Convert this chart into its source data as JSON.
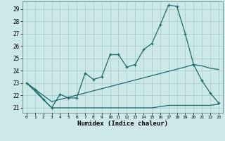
{
  "xlabel": "Humidex (Indice chaleur)",
  "background_color": "#cce8e8",
  "grid_color": "#aacfcf",
  "line_color": "#1a6b6b",
  "xlim": [
    -0.5,
    23.5
  ],
  "ylim": [
    20.6,
    29.6
  ],
  "xticks": [
    0,
    1,
    2,
    3,
    4,
    5,
    6,
    7,
    8,
    9,
    10,
    11,
    12,
    13,
    14,
    15,
    16,
    17,
    18,
    19,
    20,
    21,
    22,
    23
  ],
  "yticks": [
    21,
    22,
    23,
    24,
    25,
    26,
    27,
    28,
    29
  ],
  "line1_x": [
    0,
    1,
    2,
    3,
    4,
    5,
    6,
    7,
    8,
    9,
    10,
    11,
    12,
    13,
    14,
    15,
    16,
    17,
    18,
    19,
    20,
    21,
    22,
    23
  ],
  "line1_y": [
    23.0,
    22.5,
    21.7,
    21.0,
    22.1,
    21.8,
    21.8,
    23.8,
    23.3,
    23.5,
    25.3,
    25.3,
    24.3,
    24.5,
    25.7,
    26.2,
    27.7,
    29.3,
    29.2,
    27.0,
    24.5,
    23.2,
    22.2,
    21.4
  ],
  "line2_x": [
    0,
    3,
    10,
    15,
    17,
    22,
    23
  ],
  "line2_y": [
    23.0,
    21.0,
    21.0,
    21.0,
    21.2,
    21.2,
    21.3
  ],
  "line3_x": [
    0,
    3,
    19,
    20,
    21,
    22,
    23
  ],
  "line3_y": [
    23.0,
    21.5,
    24.3,
    24.5,
    24.4,
    24.2,
    24.1
  ]
}
